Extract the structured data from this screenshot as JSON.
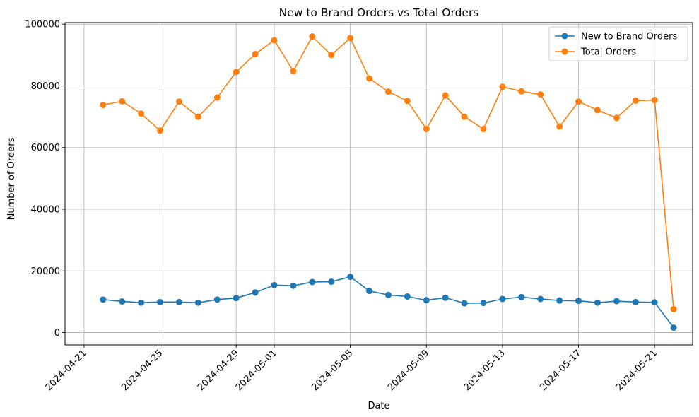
{
  "chart_data": {
    "type": "line",
    "title": "New to Brand Orders vs Total Orders",
    "xlabel": "Date",
    "ylabel": "Number of Orders",
    "grid": true,
    "legend_position": "top-right",
    "ylim": [
      -4000,
      100500
    ],
    "x_range": [
      "2024-04-20",
      "2024-05-23"
    ],
    "x_ticks": [
      "2024-04-21",
      "2024-04-25",
      "2024-04-29",
      "2024-05-01",
      "2024-05-05",
      "2024-05-09",
      "2024-05-13",
      "2024-05-17",
      "2024-05-21"
    ],
    "y_ticks": [
      0,
      20000,
      40000,
      60000,
      80000,
      100000
    ],
    "x": [
      "2024-04-22",
      "2024-04-23",
      "2024-04-24",
      "2024-04-25",
      "2024-04-26",
      "2024-04-27",
      "2024-04-28",
      "2024-04-29",
      "2024-04-30",
      "2024-05-01",
      "2024-05-02",
      "2024-05-03",
      "2024-05-04",
      "2024-05-05",
      "2024-05-06",
      "2024-05-07",
      "2024-05-08",
      "2024-05-09",
      "2024-05-10",
      "2024-05-11",
      "2024-05-12",
      "2024-05-13",
      "2024-05-14",
      "2024-05-15",
      "2024-05-16",
      "2024-05-17",
      "2024-05-18",
      "2024-05-19",
      "2024-05-20",
      "2024-05-21",
      "2024-05-22"
    ],
    "series": [
      {
        "name": "New to Brand Orders",
        "color": "#1f77b4",
        "values": [
          10700,
          10100,
          9700,
          9900,
          9900,
          9700,
          10700,
          11200,
          13000,
          15400,
          15200,
          16400,
          16500,
          18100,
          13500,
          12200,
          11700,
          10500,
          11300,
          9500,
          9600,
          10900,
          11500,
          10900,
          10400,
          10300,
          9700,
          10200,
          9900,
          9800,
          1600
        ]
      },
      {
        "name": "Total Orders",
        "color": "#ff7f0e",
        "values": [
          73800,
          75000,
          71000,
          65500,
          74900,
          70000,
          76200,
          84500,
          90300,
          94800,
          84800,
          96000,
          90000,
          95500,
          82400,
          78100,
          75100,
          66000,
          76900,
          70000,
          66000,
          79700,
          78200,
          77200,
          66800,
          74900,
          72100,
          69600,
          75200,
          75400,
          7600
        ]
      }
    ]
  }
}
